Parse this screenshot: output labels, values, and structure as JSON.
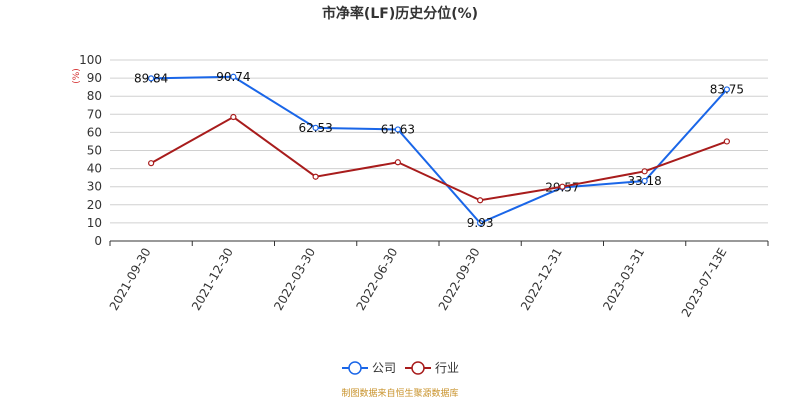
{
  "chart_data": {
    "type": "line",
    "title": "市净率(LF)历史分位(%)",
    "yunit": "(%)",
    "ylim": [
      0,
      100
    ],
    "yticks": [
      0,
      10,
      20,
      30,
      40,
      50,
      60,
      70,
      80,
      90,
      100
    ],
    "categories": [
      "2021-09-30",
      "2021-12-30",
      "2022-03-30",
      "2022-06-30",
      "2022-09-30",
      "2022-12-31",
      "2023-03-31",
      "2023-07-13E"
    ],
    "series": [
      {
        "name": "公司",
        "color": "#1a66e8",
        "values": [
          89.84,
          90.74,
          62.53,
          61.63,
          9.93,
          29.57,
          33.18,
          83.75
        ],
        "labels": [
          "89.84",
          "90.74",
          "62.53",
          "61.63",
          "9.93",
          "29.57",
          "33.18",
          "83.75"
        ]
      },
      {
        "name": "行业",
        "color": "#a81c1c",
        "values": [
          43.0,
          68.5,
          35.5,
          43.5,
          22.5,
          30.0,
          38.5,
          55.0
        ]
      }
    ],
    "grid": true,
    "legend": "bottom-center"
  },
  "footer": {
    "source": "制图数据来自恒生聚源数据库"
  }
}
